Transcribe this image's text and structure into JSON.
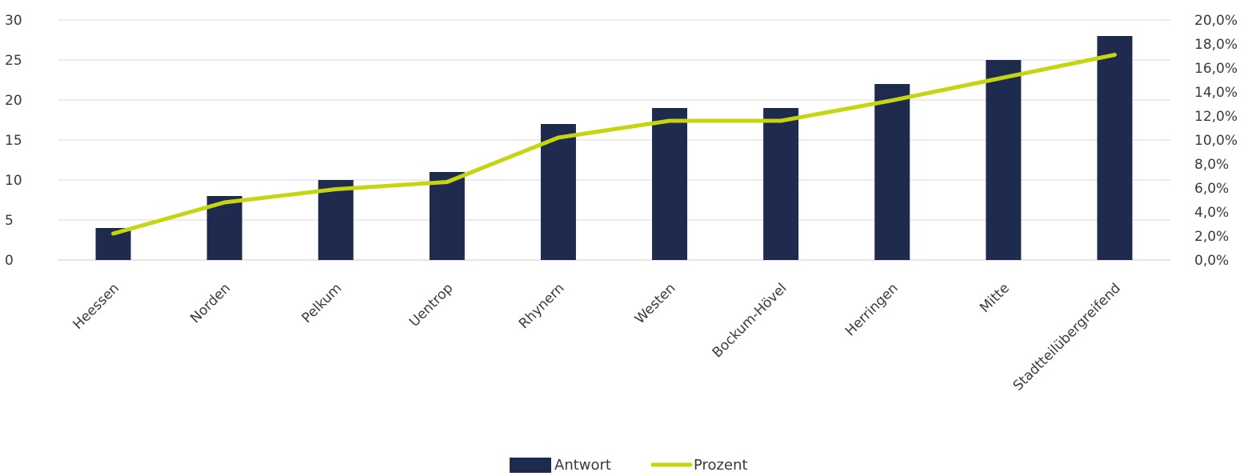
{
  "chart_data": {
    "type": "bar",
    "categories": [
      "Heessen",
      "Norden",
      "Pelkum",
      "Uentrop",
      "Rhynern",
      "Westen",
      "Bockum-Hövel",
      "Herringen",
      "Mitte",
      "Stadtteilübergreifend"
    ],
    "series": [
      {
        "name": "Antwort",
        "type": "bar",
        "axis": "left",
        "color": "#1f2a4f",
        "values": [
          4,
          8,
          10,
          11,
          17,
          19,
          19,
          22,
          25,
          28
        ]
      },
      {
        "name": "Prozent",
        "type": "line",
        "axis": "right",
        "color": "#c5d510",
        "values": [
          2.2,
          4.8,
          5.9,
          6.5,
          10.2,
          11.6,
          11.6,
          13.3,
          15.2,
          17.1
        ]
      }
    ],
    "y_left": {
      "min": 0,
      "max": 30,
      "ticks": [
        "0",
        "5",
        "10",
        "15",
        "20",
        "25",
        "30"
      ]
    },
    "y_right": {
      "min": 0,
      "max": 20,
      "ticks": [
        "0,0%",
        "2,0%",
        "4,0%",
        "6,0%",
        "8,0%",
        "10,0%",
        "12,0%",
        "14,0%",
        "16,0%",
        "18,0%",
        "20,0%"
      ]
    },
    "grid": true,
    "legend_position": "bottom-center",
    "legend": [
      "Antwort",
      "Prozent"
    ]
  }
}
